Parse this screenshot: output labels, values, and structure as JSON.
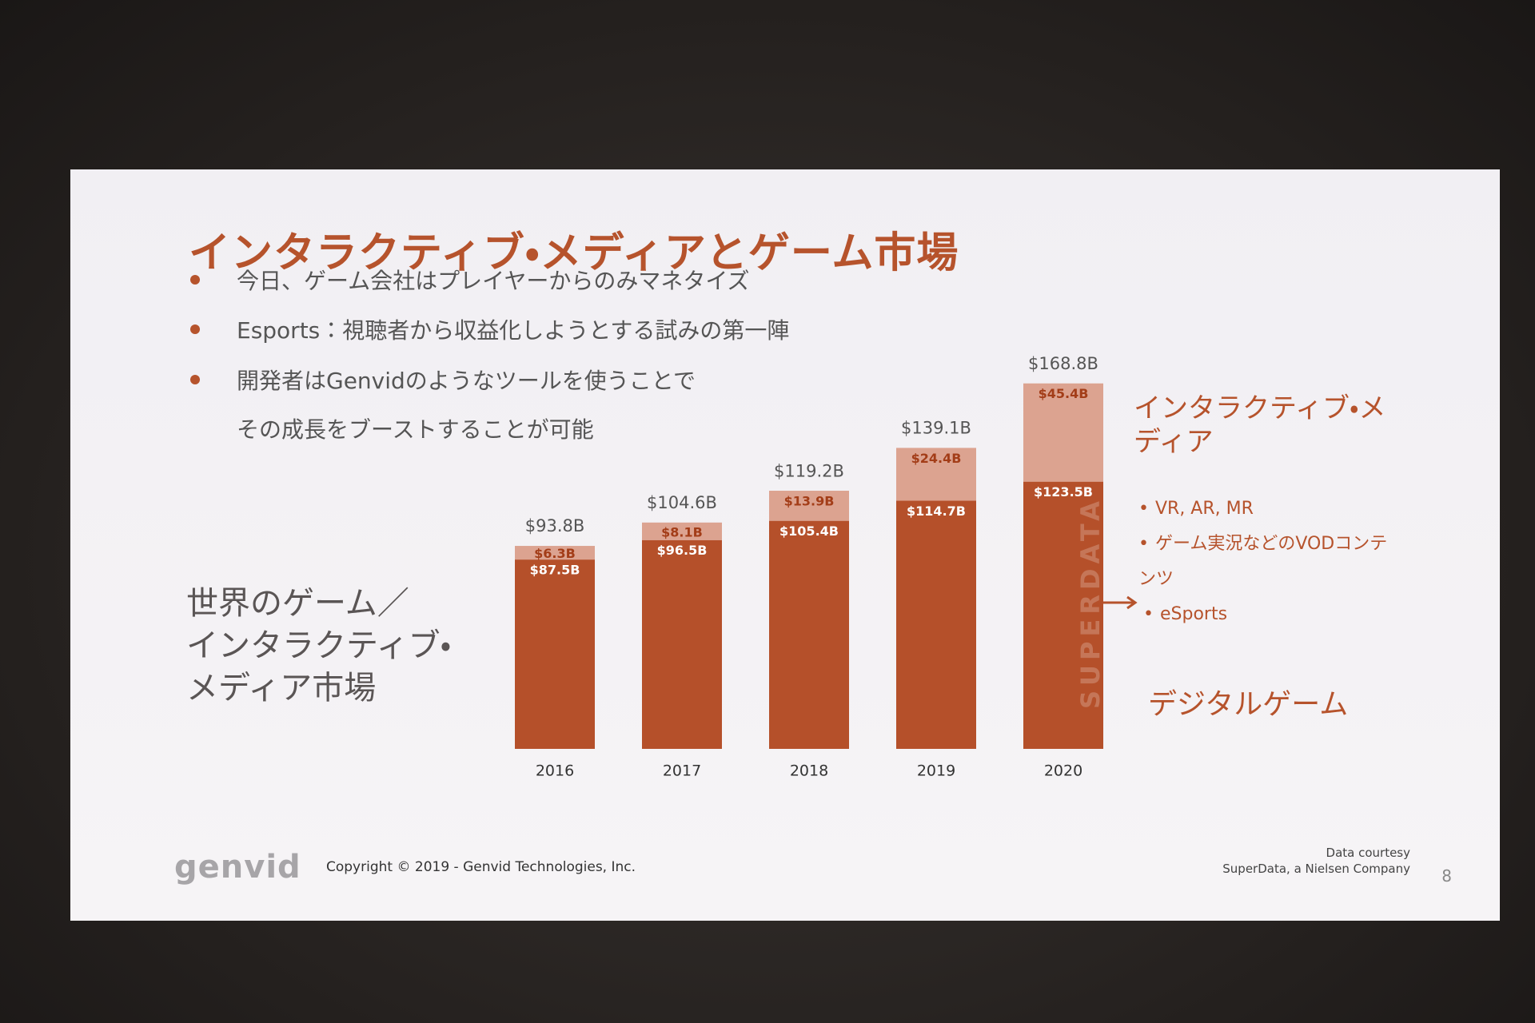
{
  "slide": {
    "title": "インタラクティブ・メディアとゲーム市場",
    "bullets": [
      [
        "今日、ゲーム会社はプレイヤーからのみマネタイズ"
      ],
      [
        "Esports：視聴者から収益化しようとする試みの第一陣"
      ],
      [
        "開発者はGenvidのようなツールを使うことで",
        "その成長をブーストすることが可能"
      ]
    ],
    "footer": {
      "logo": "genvid",
      "copyright": "Copyright © 2019 - Genvid Technologies, Inc.",
      "source": [
        "Data courtesy",
        "SuperData, a Nielsen Company"
      ],
      "page": "8"
    }
  },
  "chart_data": {
    "type": "stacked_bar",
    "title_lines": [
      "世界のゲーム／",
      "インタラクティブ・",
      "メディア市場"
    ],
    "categories": [
      "2016",
      "2017",
      "2018",
      "2019",
      "2020"
    ],
    "series": [
      {
        "name": "デジタルゲーム",
        "color": "#b5502a",
        "values": [
          87.5,
          96.5,
          105.4,
          114.7,
          123.5
        ],
        "value_labels": [
          "$87.5B",
          "$96.5B",
          "$105.4B",
          "$114.7B",
          "$123.5B"
        ]
      },
      {
        "name": "インタラクティブ・メディア",
        "color": "#dca390",
        "values": [
          6.3,
          8.1,
          13.9,
          24.4,
          45.4
        ],
        "value_labels": [
          "$6.3B",
          "$8.1B",
          "$13.9B",
          "$24.4B",
          "$45.4B"
        ]
      }
    ],
    "totals": {
      "values": [
        93.8,
        104.6,
        119.2,
        139.1,
        168.8
      ],
      "value_labels": [
        "$93.8B",
        "$104.6B",
        "$119.2B",
        "$139.1B",
        "$168.8B"
      ]
    },
    "annotations": [
      "VR, AR, MR",
      "ゲーム実況などのVODコンテンツ",
      "eSports"
    ],
    "watermark": "SUPERDATA"
  }
}
